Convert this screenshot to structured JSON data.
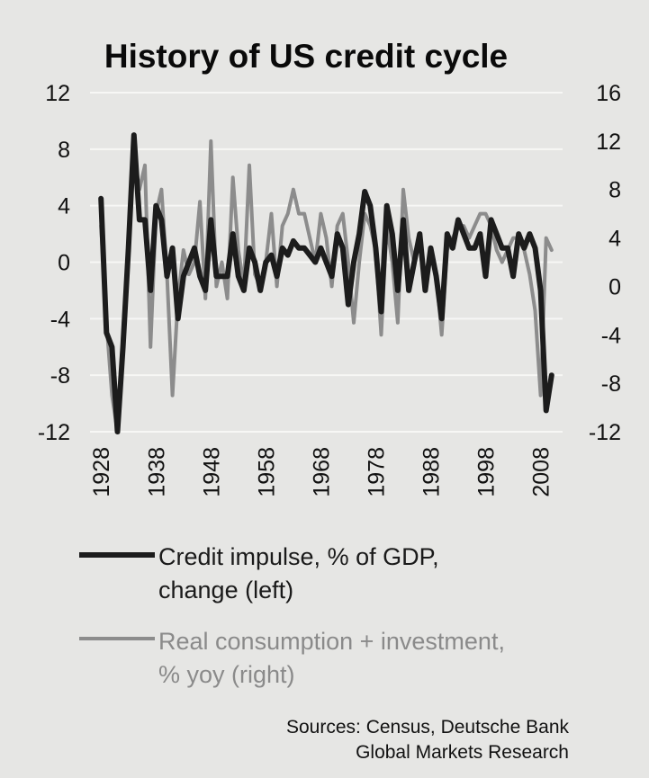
{
  "chart_data": {
    "type": "line",
    "title": "History of US credit cycle",
    "x_ticks": [
      "1928",
      "1938",
      "1948",
      "1958",
      "1968",
      "1978",
      "1988",
      "1998",
      "2008"
    ],
    "xlim": [
      1926,
      2012
    ],
    "y_left": {
      "lim": [
        -12,
        12
      ],
      "ticks": [
        "12",
        "8",
        "4",
        "0",
        "-4",
        "-8",
        "-12"
      ]
    },
    "y_right": {
      "lim": [
        -12,
        16
      ],
      "ticks": [
        "16",
        "12",
        "8",
        "4",
        "0",
        "-4",
        "-8",
        "-12"
      ]
    },
    "grid": "horizontal",
    "legend_position": "bottom",
    "series": [
      {
        "name": "Credit impulse, % of GDP, change (left)",
        "legend_lines": [
          "Credit impulse, % of GDP,",
          "change (left)"
        ],
        "axis": "left",
        "color": "#1c1c1c",
        "x": [
          1928,
          1929,
          1930,
          1931,
          1932,
          1933,
          1934,
          1935,
          1936,
          1937,
          1938,
          1939,
          1940,
          1941,
          1942,
          1943,
          1944,
          1945,
          1946,
          1947,
          1948,
          1949,
          1950,
          1951,
          1952,
          1953,
          1954,
          1955,
          1956,
          1957,
          1958,
          1959,
          1960,
          1961,
          1962,
          1963,
          1964,
          1965,
          1966,
          1967,
          1968,
          1969,
          1970,
          1971,
          1972,
          1973,
          1974,
          1975,
          1976,
          1977,
          1978,
          1979,
          1980,
          1981,
          1982,
          1983,
          1984,
          1985,
          1986,
          1987,
          1988,
          1989,
          1990,
          1991,
          1992,
          1993,
          1994,
          1995,
          1996,
          1997,
          1998,
          1999,
          2000,
          2001,
          2002,
          2003,
          2004,
          2005,
          2006,
          2007,
          2008,
          2009,
          2010
        ],
        "values": [
          4.5,
          -5,
          -6,
          -12,
          -6,
          1,
          9,
          3,
          3,
          -2,
          4,
          3,
          -1,
          1,
          -4,
          -1,
          0,
          1,
          -1,
          -2,
          3,
          -1,
          -1,
          -1,
          2,
          -1,
          -2,
          1,
          0,
          -2,
          0,
          0.5,
          -1,
          1,
          0.5,
          1.5,
          1,
          1,
          0.5,
          0,
          1,
          0,
          -1,
          2,
          1,
          -3,
          0,
          2,
          5,
          4,
          1,
          -3.5,
          4,
          2,
          -2,
          3,
          -2,
          0,
          2,
          -2,
          1,
          -1,
          -4,
          2,
          1,
          3,
          2,
          1,
          1,
          2,
          -1,
          3,
          2,
          1,
          1,
          -1,
          2,
          1,
          2,
          1,
          -2,
          -10.5,
          -8
        ]
      },
      {
        "name": "Real consumption + investment, % yoy (right)",
        "legend_lines": [
          "Real consumption + investment,",
          "% yoy (right)"
        ],
        "axis": "right",
        "color": "#8c8c8c",
        "x": [
          1928,
          1929,
          1930,
          1931,
          1932,
          1933,
          1934,
          1935,
          1936,
          1937,
          1938,
          1939,
          1940,
          1941,
          1942,
          1943,
          1944,
          1945,
          1946,
          1947,
          1948,
          1949,
          1950,
          1951,
          1952,
          1953,
          1954,
          1955,
          1956,
          1957,
          1958,
          1959,
          1960,
          1961,
          1962,
          1963,
          1964,
          1965,
          1966,
          1967,
          1968,
          1969,
          1970,
          1971,
          1972,
          1973,
          1974,
          1975,
          1976,
          1977,
          1978,
          1979,
          1980,
          1981,
          1982,
          1983,
          1984,
          1985,
          1986,
          1987,
          1988,
          1989,
          1990,
          1991,
          1992,
          1993,
          1994,
          1995,
          1996,
          1997,
          1998,
          1999,
          2000,
          2001,
          2002,
          2003,
          2004,
          2005,
          2006,
          2007,
          2008,
          2009,
          2010
        ],
        "values": [
          5,
          -3,
          -9,
          -12,
          -4,
          4,
          11,
          8,
          10,
          -5,
          6,
          8,
          1,
          -9,
          -1,
          3,
          1,
          2,
          7,
          -1,
          12,
          0,
          2,
          -1,
          9,
          3,
          0,
          10,
          1,
          0,
          2,
          6,
          0,
          5,
          6,
          8,
          6,
          6,
          4,
          2,
          6,
          4,
          0,
          5,
          6,
          2,
          -3,
          2,
          6,
          5,
          3,
          -4,
          5,
          2,
          -3,
          8,
          4,
          2,
          4,
          0,
          3,
          1,
          -4,
          3,
          4,
          5,
          5,
          4,
          5,
          6,
          6,
          5,
          3,
          2,
          3,
          4,
          4,
          3,
          1,
          -2,
          -9,
          4,
          3
        ]
      }
    ],
    "source_lines": [
      "Sources: Census, Deutsche Bank",
      "Global Markets Research"
    ]
  }
}
